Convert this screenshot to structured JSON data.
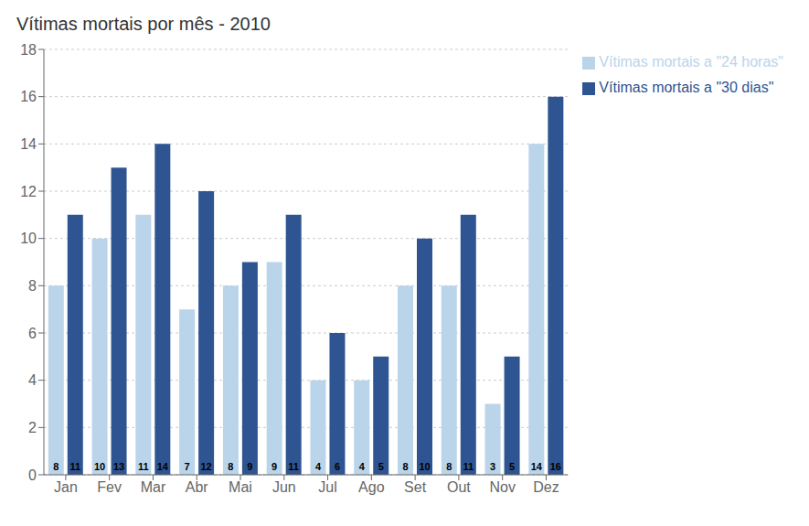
{
  "chart_data": {
    "type": "bar",
    "title": "Vítimas mortais por mês - 2010",
    "categories": [
      "Jan",
      "Fev",
      "Mar",
      "Abr",
      "Mai",
      "Jun",
      "Jul",
      "Ago",
      "Set",
      "Out",
      "Nov",
      "Dez"
    ],
    "series": [
      {
        "name": "Vítimas mortais a \"24 horas\"",
        "color": "#bad4ea",
        "values": [
          8,
          10,
          11,
          7,
          8,
          9,
          4,
          4,
          8,
          8,
          3,
          14
        ]
      },
      {
        "name": "Vítimas mortais a \"30 dias\"",
        "color": "#2e5591",
        "values": [
          11,
          13,
          14,
          12,
          9,
          11,
          6,
          5,
          10,
          11,
          5,
          16
        ]
      }
    ],
    "ylim": [
      0,
      18
    ],
    "yticks": [
      0,
      2,
      4,
      6,
      8,
      10,
      12,
      14,
      16,
      18
    ],
    "grid": true,
    "legend": "upper right",
    "data_labels": true
  }
}
